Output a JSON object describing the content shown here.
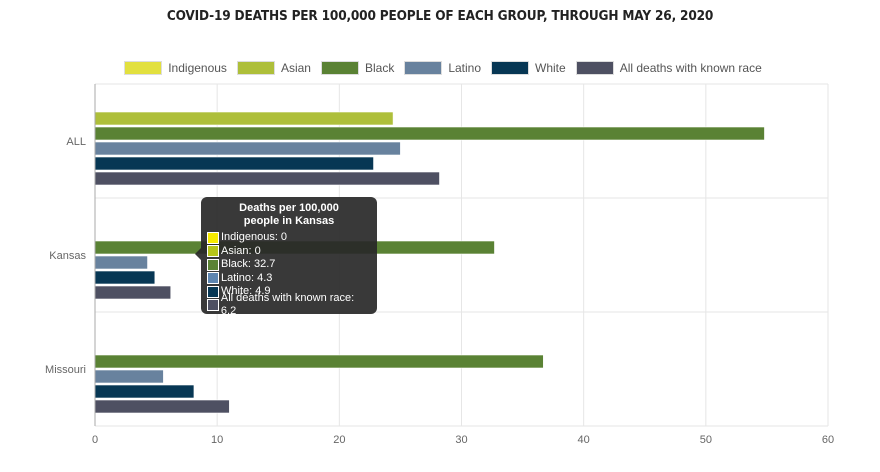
{
  "chart_data": {
    "type": "bar",
    "orientation": "horizontal",
    "title": "COVID-19 DEATHS PER 100,000 PEOPLE OF EACH GROUP, THROUGH MAY 26, 2020",
    "categories": [
      "ALL",
      "Kansas",
      "Missouri"
    ],
    "series": [
      {
        "name": "Indigenous",
        "color": "#e2e03f",
        "values": [
          0,
          0,
          0
        ]
      },
      {
        "name": "Asian",
        "color": "#aebf3a",
        "values": [
          24.4,
          0,
          0
        ]
      },
      {
        "name": "Black",
        "color": "#5a8234",
        "values": [
          54.8,
          32.7,
          36.7
        ]
      },
      {
        "name": "Latino",
        "color": "#68829e",
        "values": [
          25.0,
          4.3,
          5.6
        ]
      },
      {
        "name": "White",
        "color": "#073754",
        "values": [
          22.8,
          4.9,
          8.1
        ]
      },
      {
        "name": "All deaths with known race",
        "color": "#4e5062",
        "values": [
          28.2,
          6.2,
          11.0
        ]
      }
    ],
    "xlim": [
      0,
      60
    ],
    "xticks": [
      "0",
      "10",
      "20",
      "30",
      "40",
      "50",
      "60"
    ],
    "grid": true,
    "legend": "top"
  },
  "tooltip": {
    "title_line1": "Deaths per 100,000",
    "title_line2": "people in Kansas",
    "rows": [
      {
        "text": "Indigenous: 0",
        "color": "#f7ea00"
      },
      {
        "text": "Asian: 0",
        "color": "#b6c51a"
      },
      {
        "text": "Black: 32.7",
        "color": "#5a8234"
      },
      {
        "text": "Latino: 4.3",
        "color": "#5d85b0"
      },
      {
        "text": "White: 4.9",
        "color": "#073754"
      },
      {
        "text": "All deaths with known race: 6.2",
        "color": "#4e5062"
      }
    ]
  }
}
